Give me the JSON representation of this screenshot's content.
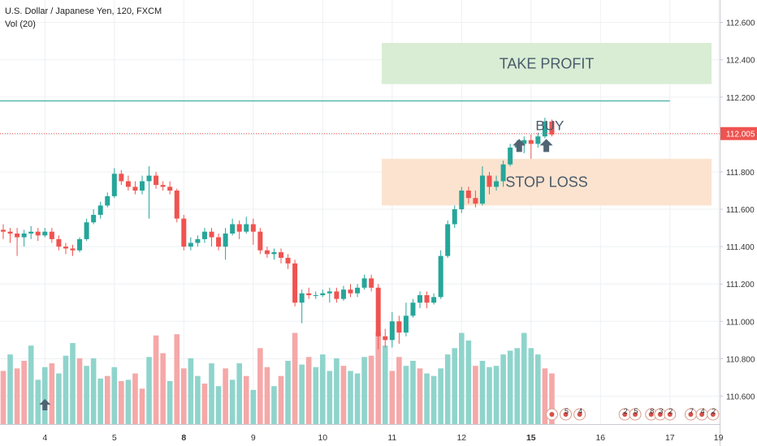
{
  "header": {
    "symbol": "U.S. Dollar / Japanese Yen, 120, FXCM",
    "indicator": "Vol (20)"
  },
  "colors": {
    "up": "#26a69a",
    "down": "#ef5350",
    "vol_up": "#8fd4cc",
    "vol_down": "#f5a8a8",
    "grid": "#eef0f3",
    "price_tag": "#ef5350",
    "trend_line": "#4fb3a5",
    "take_profit_fill": "#d6ecd2",
    "stop_loss_fill": "#fbe2cc",
    "annotation_text": "#4a5a6a",
    "arrow": "#4f6373"
  },
  "chart_data": {
    "type": "candlestick",
    "title": "U.S. Dollar / Japanese Yen, 120, FXCM",
    "ylim": [
      110.45,
      112.72
    ],
    "y_ticks": [
      "112.600",
      "112.400",
      "112.200",
      "112.000",
      "111.800",
      "111.600",
      "111.400",
      "111.200",
      "111.000",
      "110.800",
      "110.600"
    ],
    "x_ticks": [
      {
        "label": "4",
        "i": 6,
        "bold": false
      },
      {
        "label": "5",
        "i": 16,
        "bold": false
      },
      {
        "label": "8",
        "i": 26,
        "bold": true
      },
      {
        "label": "9",
        "i": 36,
        "bold": false
      },
      {
        "label": "10",
        "i": 46,
        "bold": false
      },
      {
        "label": "11",
        "i": 56,
        "bold": false
      },
      {
        "label": "12",
        "i": 66,
        "bold": false
      },
      {
        "label": "15",
        "i": 76,
        "bold": true
      },
      {
        "label": "16",
        "i": 86,
        "bold": false
      },
      {
        "label": "17",
        "i": 96,
        "bold": false
      },
      {
        "label": "19",
        "i": 103,
        "bold": false
      }
    ],
    "current_price": 112.005,
    "current_price_label": "112.005",
    "candles": [
      [
        111.49,
        111.48,
        111.52,
        111.44
      ],
      [
        111.48,
        111.47,
        111.5,
        111.42
      ],
      [
        111.47,
        111.45,
        111.5,
        111.35
      ],
      [
        111.45,
        111.47,
        111.49,
        111.4
      ],
      [
        111.47,
        111.48,
        111.51,
        111.44
      ],
      [
        111.48,
        111.46,
        111.5,
        111.43
      ],
      [
        111.46,
        111.48,
        111.5,
        111.45
      ],
      [
        111.48,
        111.44,
        111.5,
        111.42
      ],
      [
        111.44,
        111.4,
        111.46,
        111.38
      ],
      [
        111.4,
        111.39,
        111.42,
        111.36
      ],
      [
        111.39,
        111.38,
        111.41,
        111.35
      ],
      [
        111.38,
        111.44,
        111.45,
        111.37
      ],
      [
        111.44,
        111.53,
        111.55,
        111.43
      ],
      [
        111.53,
        111.57,
        111.6,
        111.52
      ],
      [
        111.57,
        111.62,
        111.64,
        111.55
      ],
      [
        111.62,
        111.67,
        111.69,
        111.61
      ],
      [
        111.67,
        111.79,
        111.82,
        111.66
      ],
      [
        111.79,
        111.75,
        111.81,
        111.73
      ],
      [
        111.75,
        111.72,
        111.78,
        111.7
      ],
      [
        111.72,
        111.7,
        111.75,
        111.68
      ],
      [
        111.7,
        111.75,
        111.78,
        111.68
      ],
      [
        111.75,
        111.78,
        111.83,
        111.55
      ],
      [
        111.78,
        111.73,
        111.8,
        111.71
      ],
      [
        111.73,
        111.72,
        111.75,
        111.7
      ],
      [
        111.72,
        111.7,
        111.75,
        111.68
      ],
      [
        111.7,
        111.55,
        111.71,
        111.53
      ],
      [
        111.55,
        111.4,
        111.57,
        111.38
      ],
      [
        111.4,
        111.42,
        111.45,
        111.38
      ],
      [
        111.42,
        111.44,
        111.46,
        111.4
      ],
      [
        111.44,
        111.48,
        111.5,
        111.42
      ],
      [
        111.48,
        111.45,
        111.5,
        111.4
      ],
      [
        111.45,
        111.4,
        111.47,
        111.38
      ],
      [
        111.4,
        111.47,
        111.5,
        111.33
      ],
      [
        111.47,
        111.52,
        111.55,
        111.46
      ],
      [
        111.52,
        111.48,
        111.54,
        111.44
      ],
      [
        111.48,
        111.52,
        111.56,
        111.47
      ],
      [
        111.52,
        111.48,
        111.55,
        111.41
      ],
      [
        111.48,
        111.38,
        111.5,
        111.36
      ],
      [
        111.38,
        111.36,
        111.4,
        111.34
      ],
      [
        111.36,
        111.37,
        111.39,
        111.33
      ],
      [
        111.37,
        111.34,
        111.39,
        111.31
      ],
      [
        111.34,
        111.31,
        111.36,
        111.28
      ],
      [
        111.31,
        111.1,
        111.33,
        111.08
      ],
      [
        111.1,
        111.15,
        111.17,
        110.99
      ],
      [
        111.15,
        111.14,
        111.18,
        111.12
      ],
      [
        111.14,
        111.14,
        111.16,
        111.12
      ],
      [
        111.14,
        111.15,
        111.17,
        111.13
      ],
      [
        111.15,
        111.16,
        111.18,
        111.1
      ],
      [
        111.16,
        111.12,
        111.18,
        111.1
      ],
      [
        111.12,
        111.17,
        111.19,
        111.11
      ],
      [
        111.17,
        111.15,
        111.2,
        111.13
      ],
      [
        111.15,
        111.18,
        111.2,
        111.13
      ],
      [
        111.18,
        111.23,
        111.25,
        111.17
      ],
      [
        111.23,
        111.18,
        111.25,
        111.16
      ],
      [
        111.18,
        110.92,
        111.2,
        110.85
      ],
      [
        110.92,
        110.9,
        110.96,
        110.86
      ],
      [
        110.9,
        111.0,
        111.05,
        110.86
      ],
      [
        111.0,
        110.94,
        111.03,
        110.88
      ],
      [
        110.94,
        111.03,
        111.1,
        110.92
      ],
      [
        111.03,
        111.1,
        111.12,
        111.02
      ],
      [
        111.1,
        111.14,
        111.16,
        111.07
      ],
      [
        111.14,
        111.1,
        111.16,
        111.07
      ],
      [
        111.1,
        111.13,
        111.15,
        111.09
      ],
      [
        111.13,
        111.35,
        111.38,
        111.12
      ],
      [
        111.35,
        111.52,
        111.54,
        111.34
      ],
      [
        111.52,
        111.6,
        111.62,
        111.5
      ],
      [
        111.6,
        111.7,
        111.72,
        111.58
      ],
      [
        111.7,
        111.66,
        111.72,
        111.63
      ],
      [
        111.66,
        111.63,
        111.7,
        111.61
      ],
      [
        111.63,
        111.78,
        111.83,
        111.62
      ],
      [
        111.78,
        111.72,
        111.8,
        111.68
      ],
      [
        111.72,
        111.75,
        111.78,
        111.7
      ],
      [
        111.75,
        111.84,
        111.86,
        111.72
      ],
      [
        111.84,
        111.93,
        111.95,
        111.83
      ],
      [
        111.93,
        111.95,
        111.97,
        111.91
      ],
      [
        111.95,
        111.97,
        111.99,
        111.9
      ],
      [
        111.97,
        111.95,
        112.0,
        111.87
      ],
      [
        111.95,
        111.99,
        112.01,
        111.93
      ],
      [
        111.99,
        112.07,
        112.09,
        111.98
      ],
      [
        112.07,
        112.0,
        112.08,
        111.99
      ]
    ],
    "volume": [
      [
        42,
        "down"
      ],
      [
        55,
        "up"
      ],
      [
        44,
        "down"
      ],
      [
        50,
        "down"
      ],
      [
        62,
        "up"
      ],
      [
        35,
        "up"
      ],
      [
        45,
        "up"
      ],
      [
        48,
        "down"
      ],
      [
        40,
        "up"
      ],
      [
        54,
        "up"
      ],
      [
        64,
        "up"
      ],
      [
        52,
        "down"
      ],
      [
        46,
        "up"
      ],
      [
        52,
        "up"
      ],
      [
        36,
        "up"
      ],
      [
        38,
        "down"
      ],
      [
        45,
        "up"
      ],
      [
        34,
        "down"
      ],
      [
        35,
        "up"
      ],
      [
        40,
        "down"
      ],
      [
        28,
        "down"
      ],
      [
        53,
        "up"
      ],
      [
        70,
        "down"
      ],
      [
        56,
        "down"
      ],
      [
        34,
        "up"
      ],
      [
        71,
        "down"
      ],
      [
        44,
        "down"
      ],
      [
        52,
        "up"
      ],
      [
        38,
        "up"
      ],
      [
        32,
        "down"
      ],
      [
        48,
        "up"
      ],
      [
        30,
        "up"
      ],
      [
        44,
        "down"
      ],
      [
        35,
        "up"
      ],
      [
        48,
        "up"
      ],
      [
        38,
        "down"
      ],
      [
        27,
        "up"
      ],
      [
        60,
        "down"
      ],
      [
        45,
        "down"
      ],
      [
        30,
        "up"
      ],
      [
        38,
        "down"
      ],
      [
        50,
        "up"
      ],
      [
        72,
        "down"
      ],
      [
        47,
        "up"
      ],
      [
        53,
        "down"
      ],
      [
        45,
        "up"
      ],
      [
        55,
        "up"
      ],
      [
        42,
        "up"
      ],
      [
        52,
        "up"
      ],
      [
        46,
        "down"
      ],
      [
        42,
        "up"
      ],
      [
        40,
        "up"
      ],
      [
        53,
        "up"
      ],
      [
        54,
        "down"
      ],
      [
        73,
        "down"
      ],
      [
        62,
        "up"
      ],
      [
        42,
        "down"
      ],
      [
        53,
        "down"
      ],
      [
        46,
        "up"
      ],
      [
        50,
        "up"
      ],
      [
        44,
        "down"
      ],
      [
        40,
        "up"
      ],
      [
        38,
        "up"
      ],
      [
        44,
        "up"
      ],
      [
        55,
        "up"
      ],
      [
        60,
        "up"
      ],
      [
        72,
        "up"
      ],
      [
        66,
        "up"
      ],
      [
        46,
        "down"
      ],
      [
        50,
        "up"
      ],
      [
        45,
        "up"
      ],
      [
        46,
        "up"
      ],
      [
        55,
        "up"
      ],
      [
        58,
        "up"
      ],
      [
        60,
        "up"
      ],
      [
        72,
        "up"
      ],
      [
        60,
        "up"
      ],
      [
        55,
        "up"
      ],
      [
        44,
        "down"
      ],
      [
        40,
        "down"
      ]
    ],
    "trend_line": {
      "i1": -1,
      "i2": 96,
      "price": 112.18
    },
    "zones": [
      {
        "id": "take-profit",
        "label": "TAKE PROFIT",
        "i1": 54.5,
        "i2": 102,
        "top": 112.49,
        "bottom": 112.27
      },
      {
        "id": "stop-loss",
        "label": "STOP LOSS",
        "i1": 54.5,
        "i2": 102,
        "top": 111.87,
        "bottom": 111.62
      }
    ],
    "buy_label": {
      "text": "BUY",
      "i": 77,
      "price": 112.05
    },
    "up_arrows": [
      {
        "i": 74.3,
        "price": 111.95
      },
      {
        "i": 78.2,
        "price": 111.95
      }
    ],
    "volume_arrow_i": 6,
    "event_markers": [
      {
        "i": 79.0,
        "text": ""
      },
      {
        "i": 81.0,
        "text": "5"
      },
      {
        "i": 83.0,
        "text": "4"
      },
      {
        "i": 89.5,
        "text": "2"
      },
      {
        "i": 91.0,
        "text": "5"
      },
      {
        "i": 93.3,
        "text": "8"
      },
      {
        "i": 94.6,
        "text": "3"
      },
      {
        "i": 96.0,
        "text": "2"
      },
      {
        "i": 99.0,
        "text": "7"
      },
      {
        "i": 100.6,
        "text": "4"
      },
      {
        "i": 102.2,
        "text": "2"
      }
    ]
  }
}
